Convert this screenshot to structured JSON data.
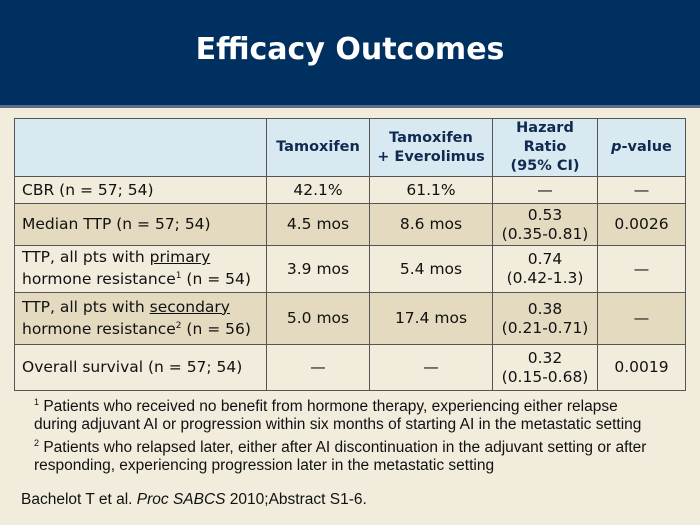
{
  "title": "Efficacy Outcomes",
  "table": {
    "headers": [
      "",
      "Tamoxifen",
      "Tamoxifen + Everolimus",
      "Hazard Ratio (95% CI)",
      "p-value"
    ],
    "rows": [
      {
        "label_pre": "CBR (n = 57; 54)",
        "tam": "42.1%",
        "tamev": "61.1%",
        "hr": "—",
        "hr_ci": "",
        "p": "—"
      },
      {
        "label_pre": "Median TTP (n = 57; 54)",
        "tam": "4.5 mos",
        "tamev": "8.6 mos",
        "hr": "0.53",
        "hr_ci": "(0.35-0.81)",
        "p": "0.0026"
      },
      {
        "label_pre": "TTP, all pts with ",
        "label_u": "primary",
        "label_post": "hormone resistance",
        "sup": "1",
        "label_end": " (n = 54)",
        "tam": "3.9 mos",
        "tamev": "5.4 mos",
        "hr": "0.74",
        "hr_ci": "(0.42-1.3)",
        "p": "—"
      },
      {
        "label_pre": "TTP, all pts with ",
        "label_u": "secondary",
        "label_post": "hormone resistance",
        "sup": "2",
        "label_end": " (n = 56)",
        "tam": "5.0 mos",
        "tamev": "17.4 mos",
        "hr": "0.38",
        "hr_ci": "(0.21-0.71)",
        "p": "—"
      },
      {
        "label_pre": "Overall survival (n = 57; 54)",
        "tam": "—",
        "tamev": "—",
        "hr": "0.32",
        "hr_ci": "(0.15-0.68)",
        "p": "0.0019"
      }
    ]
  },
  "footnotes": [
    {
      "mark": "1",
      "text": " Patients who received no benefit from hormone therapy, experiencing either relapse during adjuvant AI or progression within six months of starting AI in the metastatic setting"
    },
    {
      "mark": "2",
      "text": " Patients who relapsed later, either after AI discontinuation in the adjuvant setting or after responding, experiencing progression later in the metastatic setting"
    }
  ],
  "citation": {
    "pre": "Bachelot T et al. ",
    "journal": "Proc SABCS",
    "post": " 2010;Abstract S1-6."
  }
}
